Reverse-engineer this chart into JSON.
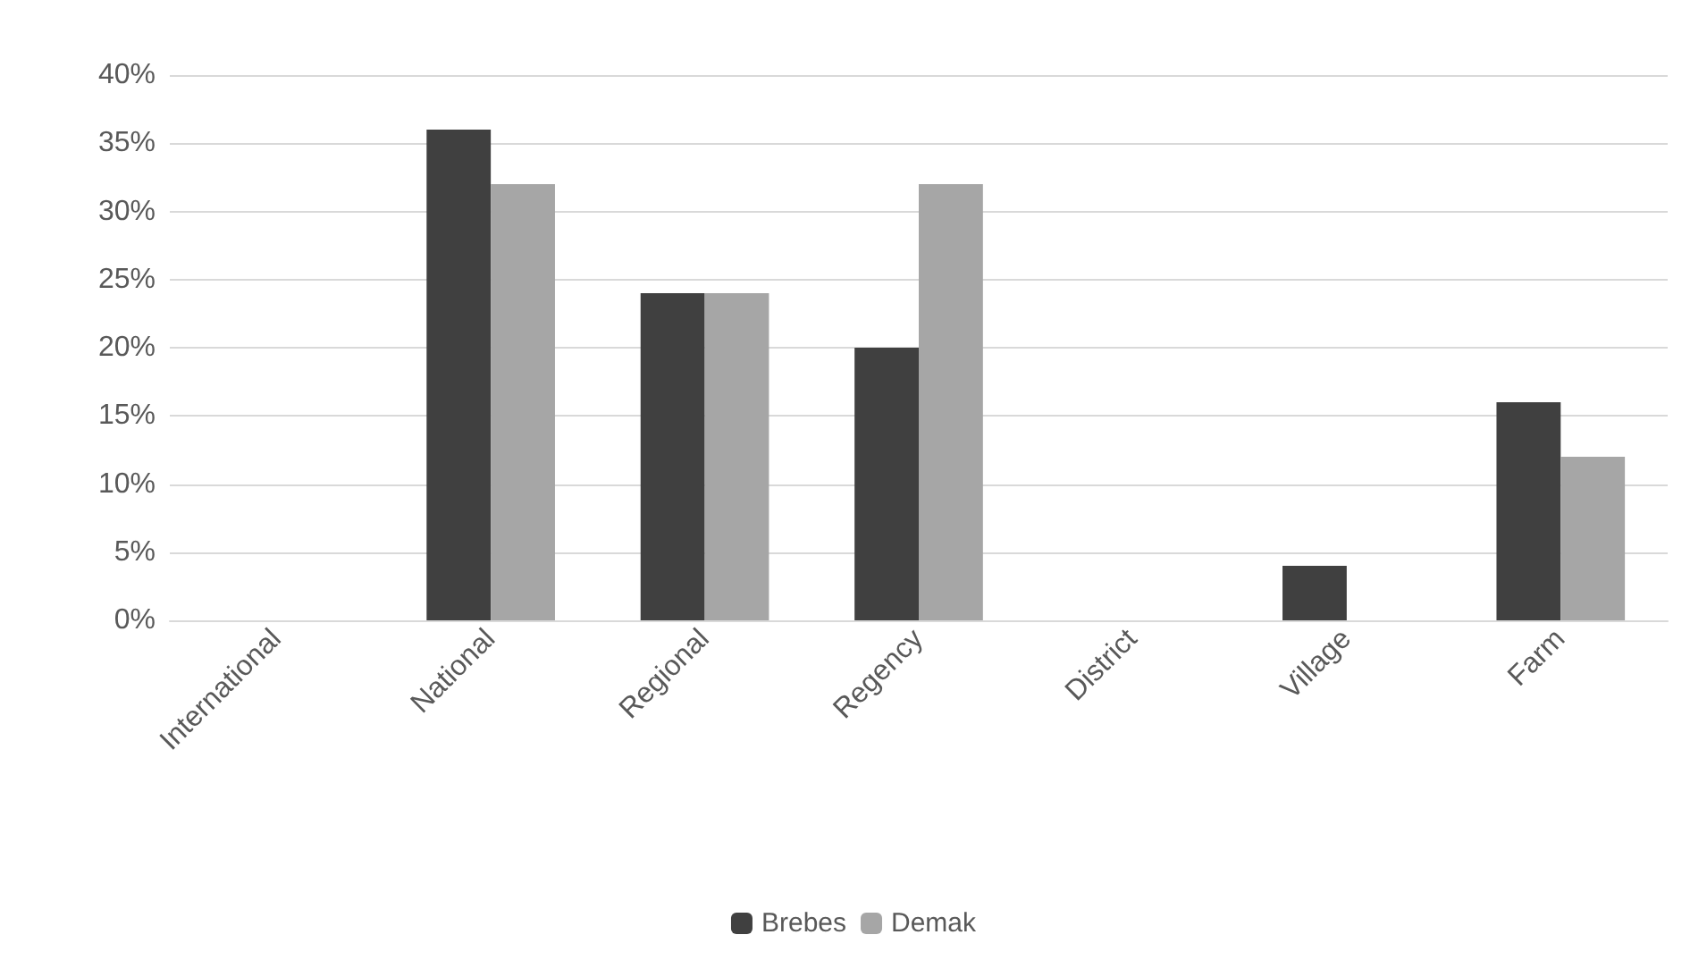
{
  "chart_data": {
    "type": "bar",
    "categories": [
      "International",
      "National",
      "Regional",
      "Regency",
      "District",
      "Village",
      "Farm"
    ],
    "series": [
      {
        "name": "Brebes",
        "color": "#404040",
        "values": [
          0,
          36,
          24,
          20,
          0,
          4,
          16
        ]
      },
      {
        "name": "Demak",
        "color": "#a6a6a6",
        "values": [
          0,
          32,
          24,
          32,
          0,
          0,
          12
        ]
      }
    ],
    "ylim": [
      0,
      40
    ],
    "yticks": [
      {
        "value": 0,
        "label": "0%"
      },
      {
        "value": 5,
        "label": "5%"
      },
      {
        "value": 10,
        "label": "10%"
      },
      {
        "value": 15,
        "label": "15%"
      },
      {
        "value": 20,
        "label": "20%"
      },
      {
        "value": 25,
        "label": "25%"
      },
      {
        "value": 30,
        "label": "30%"
      },
      {
        "value": 35,
        "label": "35%"
      },
      {
        "value": 40,
        "label": "40%"
      }
    ],
    "grid": "y",
    "legend": "bottom"
  }
}
